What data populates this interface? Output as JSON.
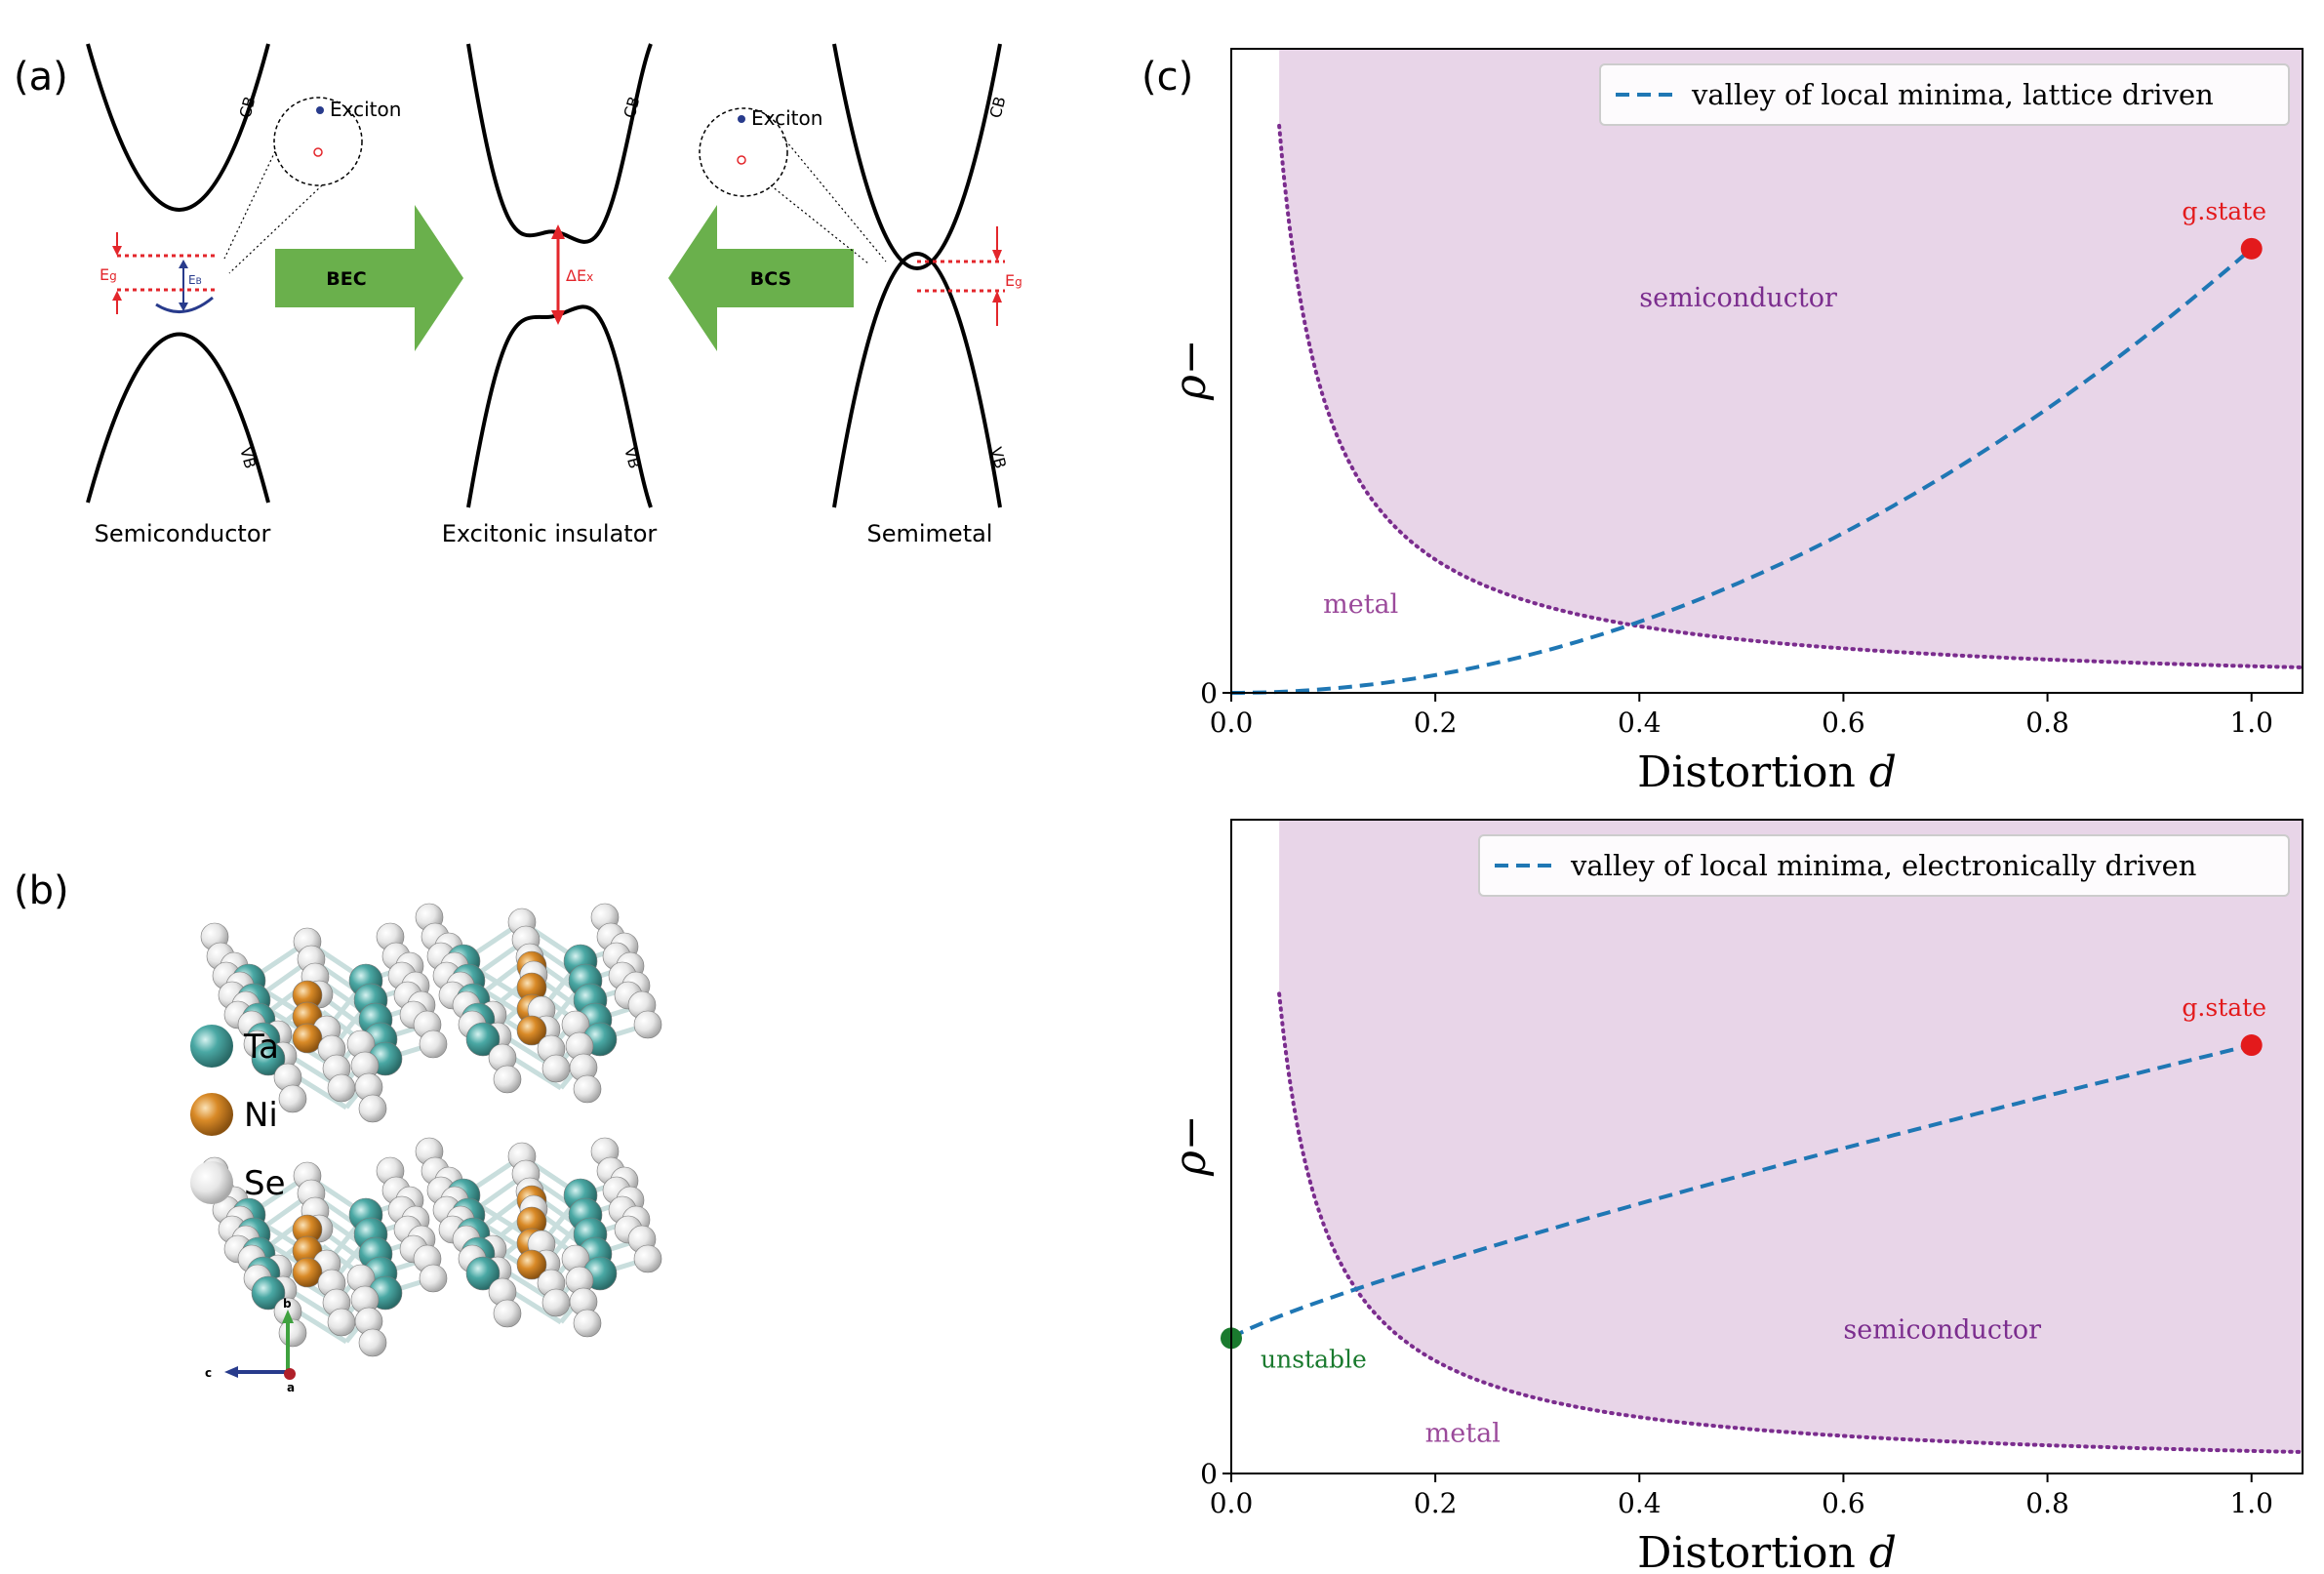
{
  "panels": {
    "a": "(a)",
    "b": "(b)",
    "c": "(c)"
  },
  "band_diagram": {
    "states": [
      "Semiconductor",
      "Excitonic insulator",
      "Semimetal"
    ],
    "arrows": [
      "BEC",
      "BCS"
    ],
    "band_labels": {
      "cb": "CB",
      "vb": "VB"
    },
    "exciton_label": "Exciton",
    "gap_label": "E",
    "gap_sub": "g",
    "binding_label": "E",
    "binding_sub": "B",
    "delta_label": "ΔE",
    "delta_sub": "x",
    "colors": {
      "arrow": "#6ab04c",
      "gap": "#e3262b",
      "binding": "#283b8c",
      "band": "#000000"
    }
  },
  "crystal": {
    "legend": [
      {
        "label": "Ta",
        "color": "#4aa8a4"
      },
      {
        "label": "Ni",
        "color": "#d98a27"
      },
      {
        "label": "Se",
        "color": "#e2e2e2"
      }
    ],
    "axes": {
      "b": "b",
      "c": "c",
      "a": "a"
    }
  },
  "chart_data": [
    {
      "type": "line",
      "xlabel": "Distortion d",
      "ylabel": "ρ−",
      "xlim": [
        0.0,
        1.05
      ],
      "xticks": [
        "0.0",
        "0.2",
        "0.4",
        "0.6",
        "0.8",
        "1.0"
      ],
      "yticks": [
        "0"
      ],
      "legend_position": "top-right",
      "series": [
        {
          "name": "valley of local minima, lattice driven",
          "style": "dashed",
          "color": "#1f77b4",
          "x": [
            0.0,
            0.1,
            0.2,
            0.3,
            0.4,
            0.5,
            0.6,
            0.7,
            0.8,
            0.9,
            1.0
          ],
          "y": [
            0.0,
            0.01,
            0.04,
            0.09,
            0.16,
            0.25,
            0.36,
            0.49,
            0.64,
            0.81,
            1.0
          ]
        }
      ],
      "boundary": {
        "style": "dotted",
        "color": "#7b2d8e",
        "fill": "#e8d5e8",
        "x": [
          0.047,
          0.06,
          0.08,
          0.1,
          0.15,
          0.2,
          0.3,
          0.4,
          0.5,
          0.6,
          0.7,
          0.8,
          0.9,
          1.0,
          1.05
        ],
        "y": [
          1.3,
          1.0,
          0.75,
          0.6,
          0.4,
          0.3,
          0.2,
          0.15,
          0.12,
          0.1,
          0.086,
          0.075,
          0.067,
          0.06,
          0.057
        ]
      },
      "points": [
        {
          "label": "g.state",
          "x": 1.0,
          "y": 1.0,
          "color": "#e31a1c"
        }
      ],
      "region_labels": [
        {
          "label": "semiconductor",
          "x": 0.4,
          "y": 0.87
        },
        {
          "label": "metal",
          "x": 0.09,
          "y": 0.18
        }
      ]
    },
    {
      "type": "line",
      "xlabel": "Distortion d",
      "ylabel": "ρ−",
      "xlim": [
        0.0,
        1.05
      ],
      "xticks": [
        "0.0",
        "0.2",
        "0.4",
        "0.6",
        "0.8",
        "1.0"
      ],
      "yticks": [
        "0"
      ],
      "legend_position": "top-right",
      "series": [
        {
          "name": "valley of local minima, electronically driven",
          "style": "dashed",
          "color": "#1f77b4",
          "x": [
            0.0,
            0.2,
            0.4,
            0.6,
            0.8,
            1.0
          ],
          "y": [
            0.3,
            0.46,
            0.6,
            0.73,
            0.85,
            0.95
          ]
        }
      ],
      "boundary": {
        "style": "dotted",
        "color": "#7b2d8e",
        "fill": "#e8d5e8",
        "x": [
          0.047,
          0.06,
          0.08,
          0.1,
          0.15,
          0.2,
          0.3,
          0.4,
          0.5,
          0.6,
          0.7,
          0.8,
          0.9,
          1.0,
          1.05
        ],
        "y": [
          1.3,
          0.95,
          0.66,
          0.5,
          0.33,
          0.25,
          0.165,
          0.124,
          0.099,
          0.083,
          0.071,
          0.062,
          0.055,
          0.05,
          0.047
        ]
      },
      "points": [
        {
          "label": "g.state",
          "x": 1.0,
          "y": 0.95,
          "color": "#e31a1c"
        },
        {
          "label": "unstable",
          "x": 0.0,
          "y": 0.3,
          "color": "#1a7a2e"
        }
      ],
      "region_labels": [
        {
          "label": "semiconductor",
          "x": 0.6,
          "y": 0.3
        },
        {
          "label": "metal",
          "x": 0.19,
          "y": 0.07
        }
      ]
    }
  ]
}
